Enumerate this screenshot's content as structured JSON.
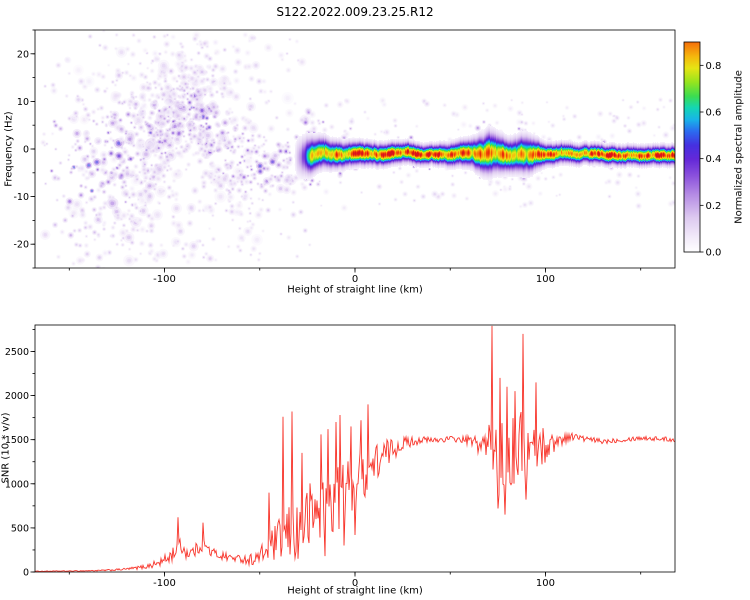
{
  "figure": {
    "title": "S122.2022.009.23.25.R12",
    "background": "#ffffff"
  },
  "chart_data": [
    {
      "type": "heatmap",
      "title": "S122.2022.009.23.25.R12",
      "xlabel": "Height of straight line (km)",
      "ylabel": "Frequency (Hz)",
      "xlim": [
        -168,
        168
      ],
      "ylim": [
        -25,
        25
      ],
      "xticks": {
        "values": [
          -100,
          0,
          100
        ],
        "labels": [
          "-100",
          "0",
          "100"
        ],
        "minor_step": 50
      },
      "yticks": {
        "values": [
          -20,
          -10,
          0,
          10,
          20
        ],
        "labels": [
          "-20",
          "-10",
          "0",
          "10",
          "20"
        ],
        "minor_step": 5
      },
      "colorbar": {
        "label": "Normalized spectral amplitude",
        "range": [
          0,
          0.9
        ],
        "ticks": {
          "values": [
            0.0,
            0.2,
            0.4,
            0.6,
            0.8
          ],
          "labels": [
            "0.0",
            "0.2",
            "0.4",
            "0.6",
            "0.8"
          ]
        },
        "colormap_stops": [
          [
            0.0,
            "#ffffff"
          ],
          [
            0.06,
            "#f3ecfa"
          ],
          [
            0.15,
            "#ddc9f0"
          ],
          [
            0.25,
            "#b48ae4"
          ],
          [
            0.33,
            "#8a50dc"
          ],
          [
            0.4,
            "#6428d8"
          ],
          [
            0.46,
            "#4530e0"
          ],
          [
            0.52,
            "#2b6cf0"
          ],
          [
            0.57,
            "#18b4e8"
          ],
          [
            0.62,
            "#14d6b4"
          ],
          [
            0.67,
            "#3cdc50"
          ],
          [
            0.73,
            "#96e41e"
          ],
          [
            0.79,
            "#e6e414"
          ],
          [
            0.84,
            "#f5b70d"
          ],
          [
            0.89,
            "#f57d0a"
          ],
          [
            0.94,
            "#ee3908"
          ],
          [
            1.0,
            "#cf0028"
          ]
        ]
      },
      "description": "Diffuse purple noise blobs over +/-25 Hz for heights below about -20 km around a wandering ridge, condensing into a narrow high-amplitude (red core, green/blue fringe) horizontal trace near -1 Hz for heights above -20 km, with broadened purple bursts near -22, -5, 70 and 90 km.",
      "ridge": [
        [
          -168,
          -4,
          16,
          0.3
        ],
        [
          -150,
          -6,
          15,
          0.32
        ],
        [
          -135,
          -4,
          13,
          0.35
        ],
        [
          -120,
          -2,
          12,
          0.38
        ],
        [
          -105,
          2,
          10,
          0.45
        ],
        [
          -95,
          6,
          8,
          0.5
        ],
        [
          -85,
          8,
          7,
          0.5
        ],
        [
          -75,
          3,
          9,
          0.45
        ],
        [
          -65,
          -2,
          9,
          0.45
        ],
        [
          -55,
          -4,
          8,
          0.45
        ],
        [
          -45,
          -3,
          7,
          0.5
        ],
        [
          -35,
          -2,
          5,
          0.55
        ],
        [
          -28,
          -1.5,
          4,
          0.7
        ],
        [
          -20,
          -1,
          3,
          0.85
        ],
        [
          -10,
          -1,
          2.5,
          0.9
        ],
        [
          0,
          -1,
          2.2,
          0.92
        ],
        [
          20,
          -1,
          2,
          0.95
        ],
        [
          40,
          -1,
          1.8,
          0.95
        ],
        [
          60,
          -1,
          2.5,
          0.9
        ],
        [
          70,
          -1,
          4,
          0.88
        ],
        [
          80,
          -1,
          3,
          0.9
        ],
        [
          90,
          -1,
          3.5,
          0.88
        ],
        [
          100,
          -1,
          2,
          0.92
        ],
        [
          120,
          -1,
          1.8,
          0.95
        ],
        [
          140,
          -1,
          1.8,
          0.95
        ],
        [
          168,
          -1,
          1.8,
          0.95
        ]
      ],
      "noise": {
        "blob_count": 1300,
        "right_blob_count": 150
      },
      "bursts": [
        {
          "x": -22,
          "count": 80,
          "spread": 7
        },
        {
          "x": -5,
          "count": 40,
          "spread": 5
        },
        {
          "x": 35,
          "count": 15,
          "spread": 3
        },
        {
          "x": 70,
          "count": 60,
          "spread": 6
        },
        {
          "x": 88,
          "count": 50,
          "spread": 5
        },
        {
          "x": 130,
          "count": 12,
          "spread": 3
        }
      ]
    },
    {
      "type": "line",
      "xlabel": "Height of straight line (km)",
      "ylabel": "SNR (10 * v/v)",
      "xlim": [
        -168,
        168
      ],
      "ylim": [
        0,
        2800
      ],
      "xticks": {
        "values": [
          -100,
          0,
          100
        ],
        "labels": [
          "-100",
          "0",
          "100"
        ],
        "minor_step": 50
      },
      "yticks": {
        "values": [
          0,
          500,
          1000,
          1500,
          2000,
          2500
        ],
        "labels": [
          "0",
          "500",
          "1000",
          "1500",
          "2000",
          "2500"
        ],
        "minor_step": 250
      },
      "line_color": "#f8352b",
      "series": [
        {
          "name": "SNR",
          "x": [
            -168,
            -155,
            -145,
            -135,
            -128,
            -122,
            -116,
            -110,
            -104,
            -100,
            -96,
            -92,
            -88,
            -84,
            -80,
            -76,
            -72,
            -68,
            -64,
            -60,
            -56,
            -52,
            -48,
            -44,
            -40,
            -36,
            -32,
            -28,
            -24,
            -20,
            -16,
            -12,
            -8,
            -4,
            0,
            4,
            8,
            12,
            16,
            20,
            25,
            30,
            35,
            40,
            45,
            50,
            55,
            60,
            64,
            68,
            72,
            76,
            80,
            84,
            88,
            92,
            96,
            100,
            105,
            110,
            115,
            120,
            130,
            140,
            150,
            160,
            168
          ],
          "y": [
            8,
            10,
            12,
            16,
            22,
            30,
            42,
            60,
            95,
            130,
            200,
            300,
            210,
            240,
            320,
            230,
            195,
            175,
            160,
            150,
            140,
            150,
            210,
            290,
            350,
            400,
            460,
            520,
            610,
            700,
            750,
            800,
            870,
            950,
            1020,
            1100,
            1180,
            1260,
            1330,
            1400,
            1460,
            1480,
            1500,
            1490,
            1500,
            1510,
            1500,
            1490,
            1460,
            1420,
            1450,
            1250,
            1300,
            1400,
            1450,
            1350,
            1420,
            1430,
            1470,
            1520,
            1540,
            1510,
            1480,
            1500,
            1520,
            1510,
            1500
          ]
        }
      ],
      "noise_envelope": {
        "x": [
          -168,
          -140,
          -120,
          -110,
          -100,
          -95,
          -90,
          -80,
          -70,
          -60,
          -52,
          -46,
          -40,
          -34,
          -28,
          -22,
          -16,
          -10,
          -4,
          2,
          8,
          14,
          20,
          26,
          35,
          45,
          55,
          62,
          68,
          74,
          80,
          86,
          92,
          98,
          104,
          112,
          125,
          145,
          168
        ],
        "amp": [
          3,
          5,
          12,
          25,
          60,
          90,
          70,
          80,
          50,
          40,
          80,
          140,
          240,
          340,
          390,
          420,
          390,
          400,
          330,
          300,
          260,
          200,
          130,
          70,
          40,
          32,
          35,
          60,
          180,
          420,
          430,
          390,
          380,
          240,
          110,
          45,
          30,
          26,
          26
        ]
      },
      "spikes": [
        [
          -93,
          620
        ],
        [
          -80,
          560
        ],
        [
          -45,
          900
        ],
        [
          -38,
          1760
        ],
        [
          -33,
          1820
        ],
        [
          -28,
          1350
        ],
        [
          -18,
          1560
        ],
        [
          -14,
          1620
        ],
        [
          -10,
          1700
        ],
        [
          -8,
          1780
        ],
        [
          -2,
          1650
        ],
        [
          3,
          1720
        ],
        [
          7,
          1900
        ],
        [
          72,
          2790
        ],
        [
          76,
          2200
        ],
        [
          80,
          2100
        ],
        [
          84,
          2050
        ],
        [
          88,
          2700
        ],
        [
          95,
          2150
        ],
        [
          -30,
          150
        ],
        [
          -16,
          180
        ],
        [
          -6,
          300
        ],
        [
          0,
          420
        ],
        [
          75,
          720
        ],
        [
          79,
          650
        ],
        [
          90,
          820
        ]
      ]
    }
  ]
}
